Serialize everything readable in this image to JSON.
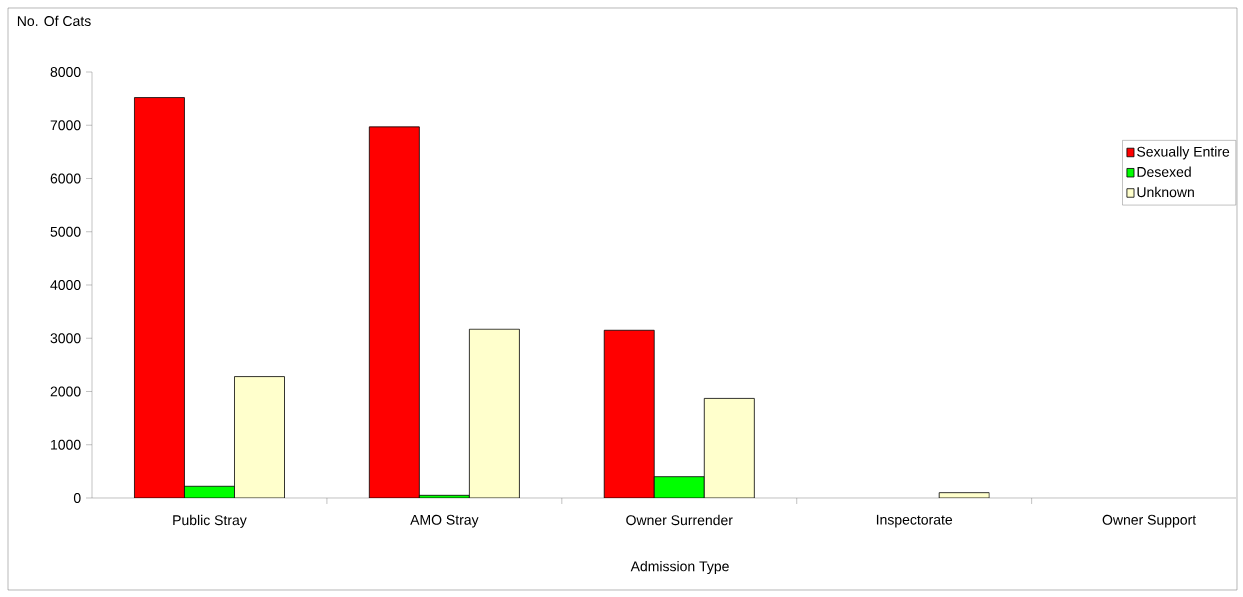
{
  "chart_data": {
    "type": "bar",
    "xlabel": "Admission Type",
    "ylabel": "No. Of Cats",
    "categories": [
      "Public Stray",
      "AMO Stray",
      "Owner Surrender",
      "Inspectorate",
      "Owner Support"
    ],
    "series": [
      {
        "name": "Sexually Entire",
        "color": "#ff0000",
        "values": [
          7520,
          6970,
          3150,
          0,
          0
        ]
      },
      {
        "name": "Desexed",
        "color": "#00ff00",
        "values": [
          220,
          50,
          400,
          0,
          0
        ]
      },
      {
        "name": "Unknown",
        "color": "#ffffcc",
        "values": [
          2280,
          3170,
          1870,
          100,
          0
        ]
      }
    ],
    "ylim": [
      0,
      8000
    ],
    "yticks": [
      0,
      1000,
      2000,
      3000,
      4000,
      5000,
      6000,
      7000,
      8000
    ],
    "grid": false,
    "legend": "right"
  }
}
